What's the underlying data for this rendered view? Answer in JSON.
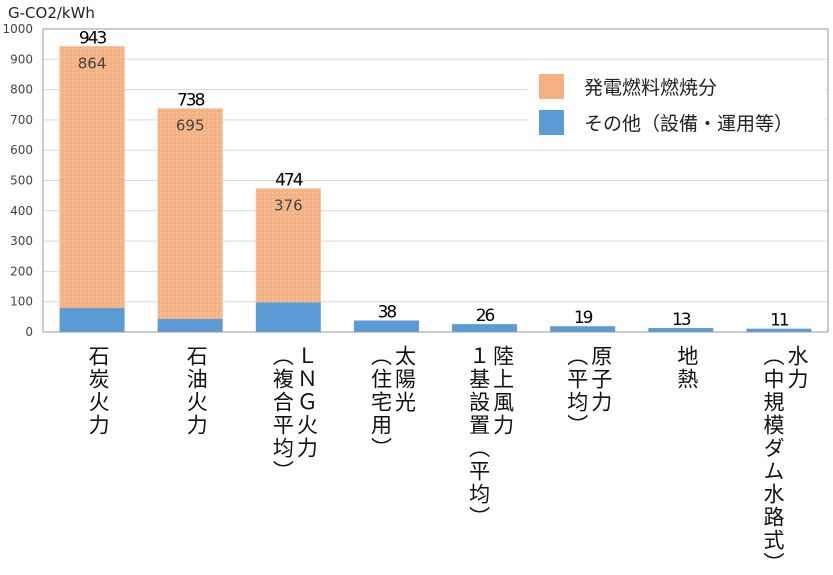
{
  "chart_data": {
    "type": "bar",
    "stacked": true,
    "ylabel": "G-CO2/kWh",
    "ylim": [
      0,
      1000
    ],
    "yticks": [
      0,
      100,
      200,
      300,
      400,
      500,
      600,
      700,
      800,
      900,
      1000
    ],
    "grid": true,
    "legend_position": "top-right",
    "categories": [
      "石炭火力",
      "石油火力",
      "ＬＮＧ火力\n（複合平均）",
      "太陽光\n（住宅用）",
      "陸上風力\n１基設置（平均）",
      "原子力\n（平均）",
      "地熱",
      "水力\n（中規模ダム水路式）"
    ],
    "totals": [
      943,
      738,
      474,
      38,
      26,
      19,
      13,
      11
    ],
    "series": [
      {
        "name": "その他（設備・運用等）",
        "color": "#5B9BD5",
        "values": [
          79,
          43,
          98,
          38,
          26,
          19,
          13,
          11
        ]
      },
      {
        "name": "発電燃料燃焼分",
        "color": "#F4B183",
        "values": [
          864,
          695,
          376,
          null,
          null,
          null,
          null,
          null
        ]
      }
    ],
    "fuel_labels": [
      "864",
      "695",
      "376"
    ]
  }
}
